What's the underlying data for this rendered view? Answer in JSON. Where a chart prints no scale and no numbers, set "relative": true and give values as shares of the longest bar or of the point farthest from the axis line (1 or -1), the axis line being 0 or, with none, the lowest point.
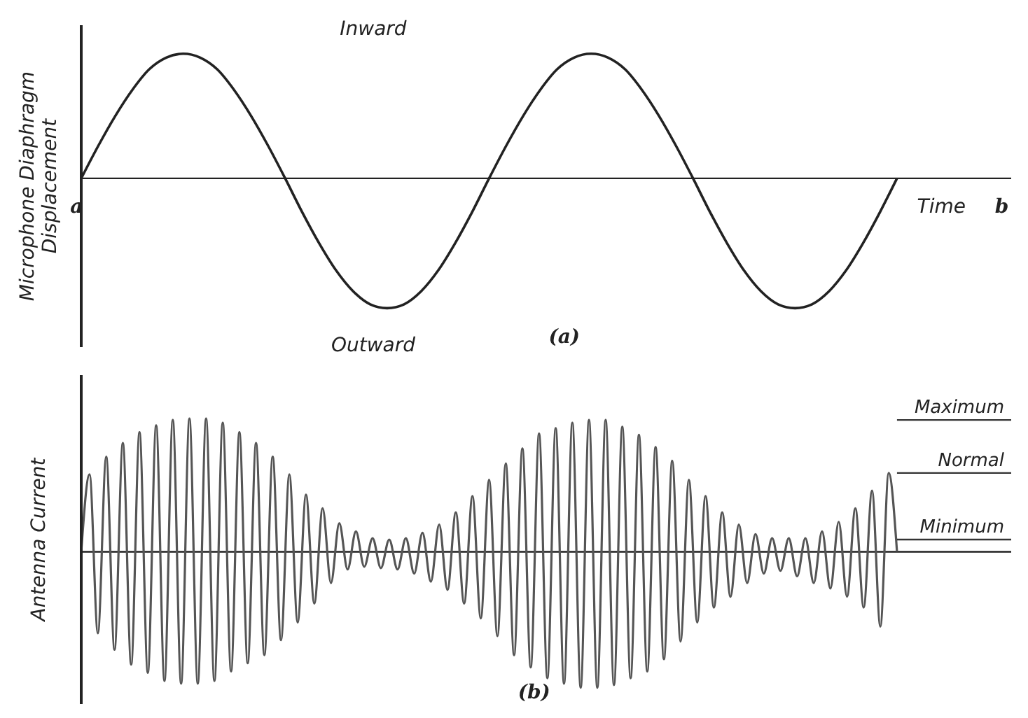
{
  "chart_data": [
    {
      "type": "line",
      "relative": true,
      "ylabel": "Microphone Diaphragm Displacement",
      "xlabel": "Time",
      "annotations": [
        "Inward",
        "Outward",
        "(a)",
        "a",
        "b"
      ],
      "marker": "none",
      "line_style": "solid",
      "categories": [
        null,
        null,
        null,
        null,
        null,
        null,
        null,
        null,
        null,
        null,
        null,
        null,
        null,
        null,
        null,
        null,
        null,
        null,
        null,
        null,
        null,
        null,
        null,
        null,
        null,
        null,
        null,
        null,
        null,
        null,
        null,
        null,
        null,
        null,
        null,
        null,
        null,
        null,
        null,
        null,
        null,
        null,
        null,
        null,
        null,
        null,
        null,
        null,
        null
      ],
      "series": [
        {
          "color": "#222222",
          "values": [
            0,
            0.25,
            0.48,
            0.68,
            0.84,
            0.93,
            0.96,
            0.93,
            0.84,
            0.68,
            0.48,
            0.25,
            0,
            -0.26,
            -0.5,
            -0.71,
            -0.87,
            -0.97,
            -1,
            -0.97,
            -0.87,
            -0.71,
            -0.5,
            -0.26,
            0,
            0.25,
            0.48,
            0.68,
            0.84,
            0.93,
            0.96,
            0.93,
            0.84,
            0.68,
            0.48,
            0.25,
            0,
            -0.26,
            -0.5,
            -0.71,
            -0.87,
            -0.97,
            -1,
            -0.97,
            -0.87,
            -0.71,
            -0.5,
            -0.26,
            0
          ]
        }
      ]
    },
    {
      "type": "line",
      "relative": true,
      "ylabel": "Antenna Current",
      "annotations": [
        "(b)"
      ],
      "marker": "none",
      "line_style": "solid",
      "categories": [
        null,
        null,
        null,
        null,
        null,
        null,
        null,
        null,
        null,
        null,
        null,
        null,
        null,
        null,
        null,
        null,
        null,
        null,
        null,
        null,
        null,
        null,
        null,
        null,
        null,
        null,
        null,
        null,
        null,
        null,
        null,
        null,
        null,
        null,
        null,
        null,
        null,
        null,
        null,
        null,
        null,
        null,
        null,
        null,
        null,
        null,
        null,
        null,
        null,
        null,
        null,
        null,
        null,
        null,
        null,
        null,
        null,
        null,
        null,
        null,
        null,
        null,
        null,
        null,
        null,
        null,
        null,
        null,
        null,
        null,
        null,
        null,
        null,
        null,
        null,
        null,
        null,
        null,
        null,
        null,
        null,
        null,
        null,
        null,
        null,
        null,
        null,
        null,
        null,
        null,
        null,
        null,
        null,
        null,
        null,
        null,
        null,
        null,
        null
      ],
      "ref_lines": [
        {
          "axis": "y",
          "value": 0.97,
          "label": "Maximum"
        },
        {
          "axis": "y",
          "value": 0.58,
          "label": "Normal"
        },
        {
          "axis": "y",
          "value": 0.09,
          "label": "Minimum"
        }
      ],
      "series": [
        {
          "color": "#555555",
          "values": [
            0,
            0.57,
            -0.6,
            0.7,
            -0.72,
            0.8,
            -0.83,
            0.88,
            -0.89,
            0.93,
            -0.95,
            0.97,
            -0.97,
            0.98,
            -0.97,
            0.98,
            -0.95,
            0.95,
            -0.88,
            0.88,
            -0.82,
            0.8,
            -0.76,
            0.7,
            -0.65,
            0.57,
            -0.52,
            0.42,
            -0.38,
            0.32,
            -0.23,
            0.21,
            -0.13,
            0.15,
            -0.11,
            0.1,
            -0.12,
            0.09,
            -0.13,
            0.1,
            -0.16,
            0.14,
            -0.22,
            0.2,
            -0.28,
            0.29,
            -0.38,
            0.41,
            -0.49,
            0.53,
            -0.62,
            0.65,
            -0.76,
            0.76,
            -0.85,
            0.87,
            -0.93,
            0.91,
            -0.97,
            0.95,
            -1,
            0.97,
            -1,
            0.97,
            -0.98,
            0.92,
            -0.93,
            0.86,
            -0.88,
            0.77,
            -0.79,
            0.67,
            -0.66,
            0.53,
            -0.52,
            0.41,
            -0.41,
            0.29,
            -0.33,
            0.2,
            -0.23,
            0.13,
            -0.16,
            0.1,
            -0.14,
            0.1,
            -0.18,
            0.1,
            -0.23,
            0.15,
            -0.27,
            0.22,
            -0.33,
            0.32,
            -0.41,
            0.45,
            -0.55,
            0.58,
            0
          ]
        }
      ]
    }
  ]
}
